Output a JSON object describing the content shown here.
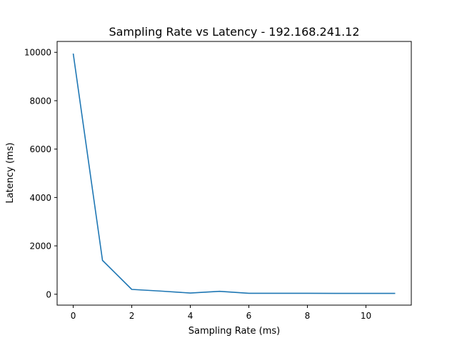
{
  "chart_data": {
    "type": "line",
    "title": "Sampling Rate vs Latency - 192.168.241.12",
    "xlabel": "Sampling Rate (ms)",
    "ylabel": "Latency (ms)",
    "xlim": [
      -0.55,
      11.55
    ],
    "ylim": [
      -450,
      10450
    ],
    "x_ticks": [
      0,
      2,
      4,
      6,
      8,
      10
    ],
    "y_ticks": [
      0,
      2000,
      4000,
      6000,
      8000,
      10000
    ],
    "grid": false,
    "legend": "none",
    "series": [
      {
        "color": "#1f77b4",
        "x": [
          0,
          1,
          2,
          3,
          4,
          5,
          6,
          7,
          8,
          9,
          10,
          11
        ],
        "y": [
          9950,
          1400,
          200,
          130,
          50,
          120,
          40,
          40,
          40,
          35,
          35,
          35
        ]
      }
    ]
  }
}
